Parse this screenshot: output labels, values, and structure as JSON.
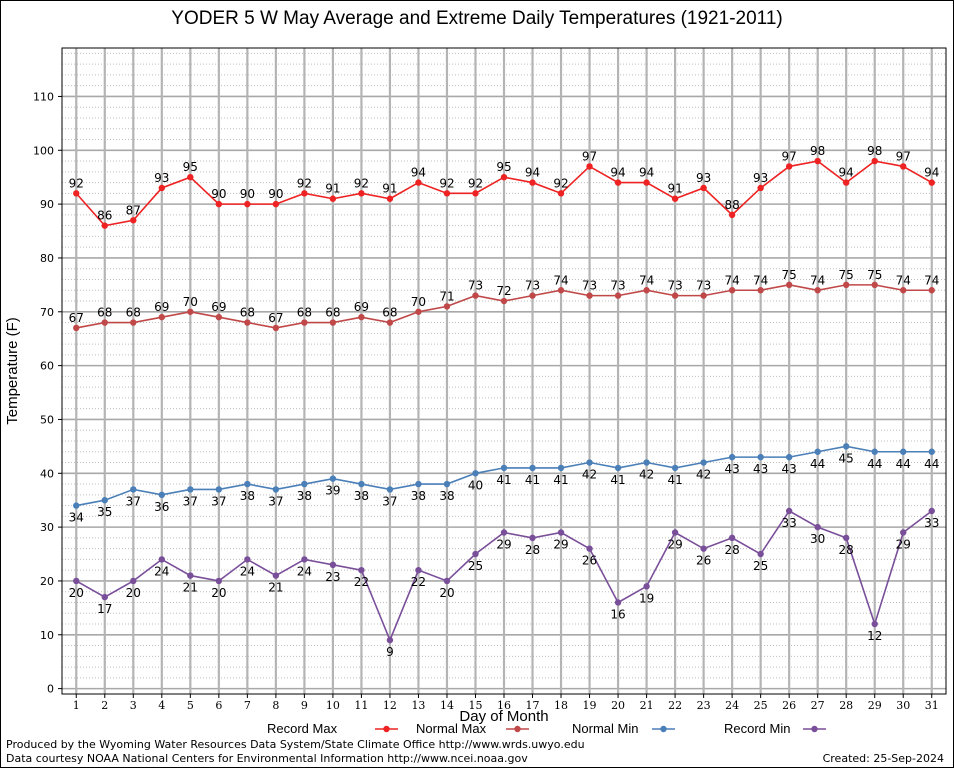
{
  "title": "YODER 5 W May Average and Extreme Daily Temperatures (1921-2011)",
  "footer": {
    "produced_by": "Produced by the Wyoming Water Resources Data System/State Climate Office http://www.wrds.uwyo.edu",
    "courtesy": "Data courtesy NOAA National Centers for Environmental Information http://www.ncei.noaa.gov",
    "created": "Created:  25-Sep-2024"
  },
  "chart_data": {
    "type": "line",
    "xlabel": "Day of Month",
    "ylabel": "Temperature (F)",
    "x": [
      1,
      2,
      3,
      4,
      5,
      6,
      7,
      8,
      9,
      10,
      11,
      12,
      13,
      14,
      15,
      16,
      17,
      18,
      19,
      20,
      21,
      22,
      23,
      24,
      25,
      26,
      27,
      28,
      29,
      30,
      31
    ],
    "ylim": [
      -1,
      119
    ],
    "yticks": [
      0,
      10,
      20,
      30,
      40,
      50,
      60,
      70,
      80,
      90,
      100,
      110
    ],
    "grid": true,
    "legend_placement": "bottom",
    "series": [
      {
        "name": "Record Max",
        "color": "#ee2222",
        "values": [
          92,
          86,
          87,
          93,
          95,
          90,
          90,
          90,
          92,
          91,
          92,
          91,
          94,
          92,
          92,
          95,
          94,
          92,
          97,
          94,
          94,
          91,
          93,
          88,
          93,
          97,
          98,
          94,
          98,
          97,
          94
        ]
      },
      {
        "name": "Normal Max",
        "color": "#c04848",
        "values": [
          67,
          68,
          68,
          69,
          70,
          69,
          68,
          67,
          68,
          68,
          69,
          68,
          70,
          71,
          73,
          72,
          73,
          74,
          73,
          73,
          74,
          73,
          73,
          74,
          74,
          75,
          74,
          75,
          75,
          74,
          74
        ]
      },
      {
        "name": "Normal Min",
        "color": "#4a7fb8",
        "values": [
          34,
          35,
          37,
          36,
          37,
          37,
          38,
          37,
          38,
          39,
          38,
          37,
          38,
          38,
          40,
          41,
          41,
          41,
          42,
          41,
          42,
          41,
          42,
          43,
          43,
          43,
          44,
          45,
          44,
          44,
          44
        ]
      },
      {
        "name": "Record Min",
        "color": "#7a4f9a",
        "values": [
          20,
          17,
          20,
          24,
          21,
          20,
          24,
          21,
          24,
          23,
          22,
          9,
          22,
          20,
          25,
          29,
          28,
          29,
          26,
          16,
          19,
          29,
          26,
          28,
          25,
          33,
          30,
          28,
          12,
          29,
          33
        ]
      }
    ]
  }
}
